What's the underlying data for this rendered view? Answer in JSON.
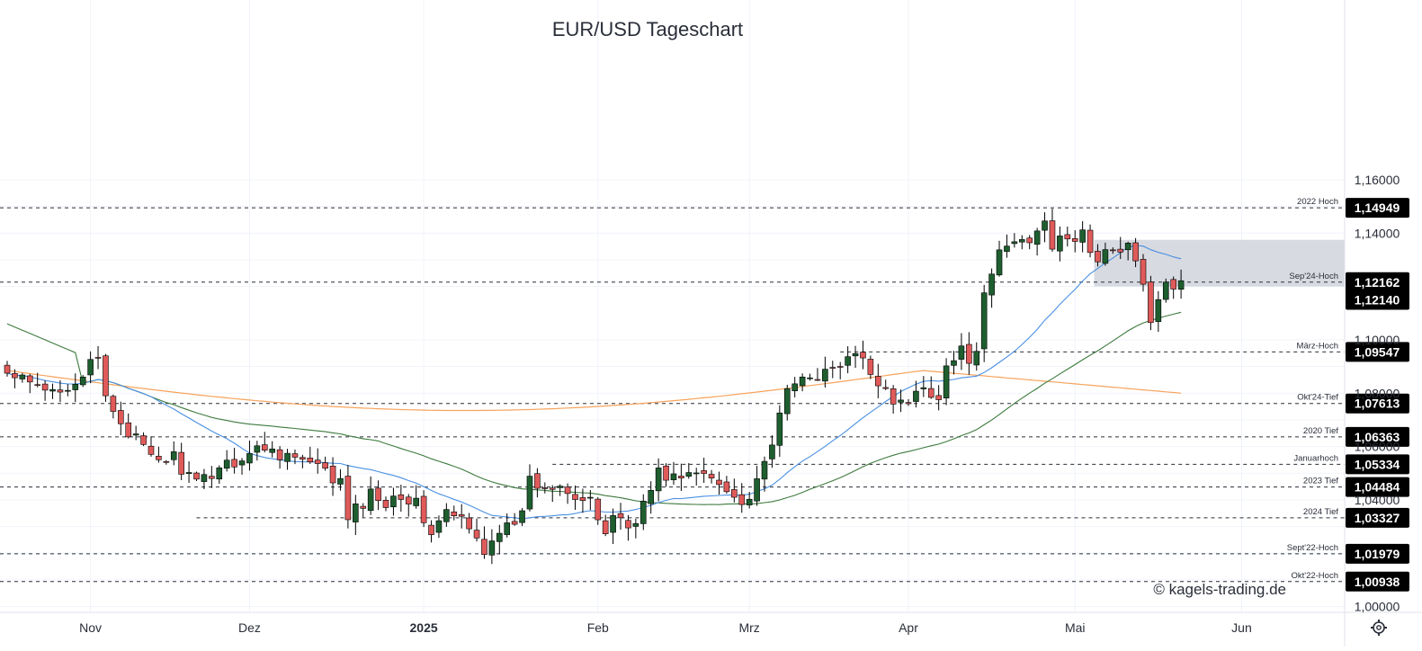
{
  "chart_data": {
    "type": "candlestick",
    "title": "EUR/USD Tageschart",
    "watermark": "© kagels-trading.de",
    "settings_icon": "gear-icon",
    "x_axis": {
      "labels": [
        {
          "text": "Nov",
          "bar": 11,
          "bold": false
        },
        {
          "text": "Dez",
          "bar": 32,
          "bold": false
        },
        {
          "text": "2025",
          "bar": 55,
          "bold": true
        },
        {
          "text": "Feb",
          "bar": 78,
          "bold": false
        },
        {
          "text": "Mrz",
          "bar": 98,
          "bold": false
        },
        {
          "text": "Apr",
          "bar": 119,
          "bold": false
        },
        {
          "text": "Mai",
          "bar": 141,
          "bold": false
        },
        {
          "text": "Jun",
          "bar": 163,
          "bold": false
        }
      ]
    },
    "y_axis": {
      "range": [
        0.99,
        1.165
      ],
      "ticks": [
        {
          "value": 1.16,
          "label": "1,16000"
        },
        {
          "value": 1.14,
          "label": "1,14000"
        },
        {
          "value": 1.1,
          "label": "1,10000"
        },
        {
          "value": 1.08,
          "label": "1,08000"
        },
        {
          "value": 1.06,
          "label": "1,06000"
        },
        {
          "value": 1.04,
          "label": "1,04000"
        },
        {
          "value": 1.0,
          "label": "1,00000"
        }
      ]
    },
    "levels": [
      {
        "name": "2022 Hoch",
        "value": 1.14949,
        "label": "1,14949",
        "from_bar": 0,
        "thin": false
      },
      {
        "name": "Sep'24-Hoch",
        "value": 1.12162,
        "label": "1,12162",
        "from_bar": 0,
        "thin": false
      },
      {
        "name": "März-Hoch",
        "value": 1.09547,
        "label": "1,09547",
        "from_bar": 110,
        "thin": false
      },
      {
        "name": "Okt'24-Tief",
        "value": 1.07613,
        "label": "1,07613",
        "from_bar": 0,
        "thin": false
      },
      {
        "name": "2020 Tief",
        "value": 1.06363,
        "label": "1,06363",
        "from_bar": 0,
        "thin": true
      },
      {
        "name": "Januarhoch",
        "value": 1.05334,
        "label": "1,05334",
        "from_bar": 72,
        "thin": false
      },
      {
        "name": "2023 Tief",
        "value": 1.04484,
        "label": "1,04484",
        "from_bar": 0,
        "thin": false
      },
      {
        "name": "2024 Tief",
        "value": 1.03327,
        "label": "1,03327",
        "from_bar": 25,
        "thin": false
      },
      {
        "name": "Sept'22-Hoch",
        "value": 1.01979,
        "label": "1,01979",
        "from_bar": 0,
        "thin": false
      },
      {
        "name": "Okt'22-Hoch",
        "value": 1.00938,
        "label": "1,00938",
        "from_bar": 0,
        "thin": false
      }
    ],
    "last_price": {
      "value": 1.1214,
      "label": "1,12140"
    },
    "zone": {
      "from_bar": 144,
      "to_bar": "end",
      "y_top": 1.1375,
      "y_bottom": 1.12
    }
  }
}
